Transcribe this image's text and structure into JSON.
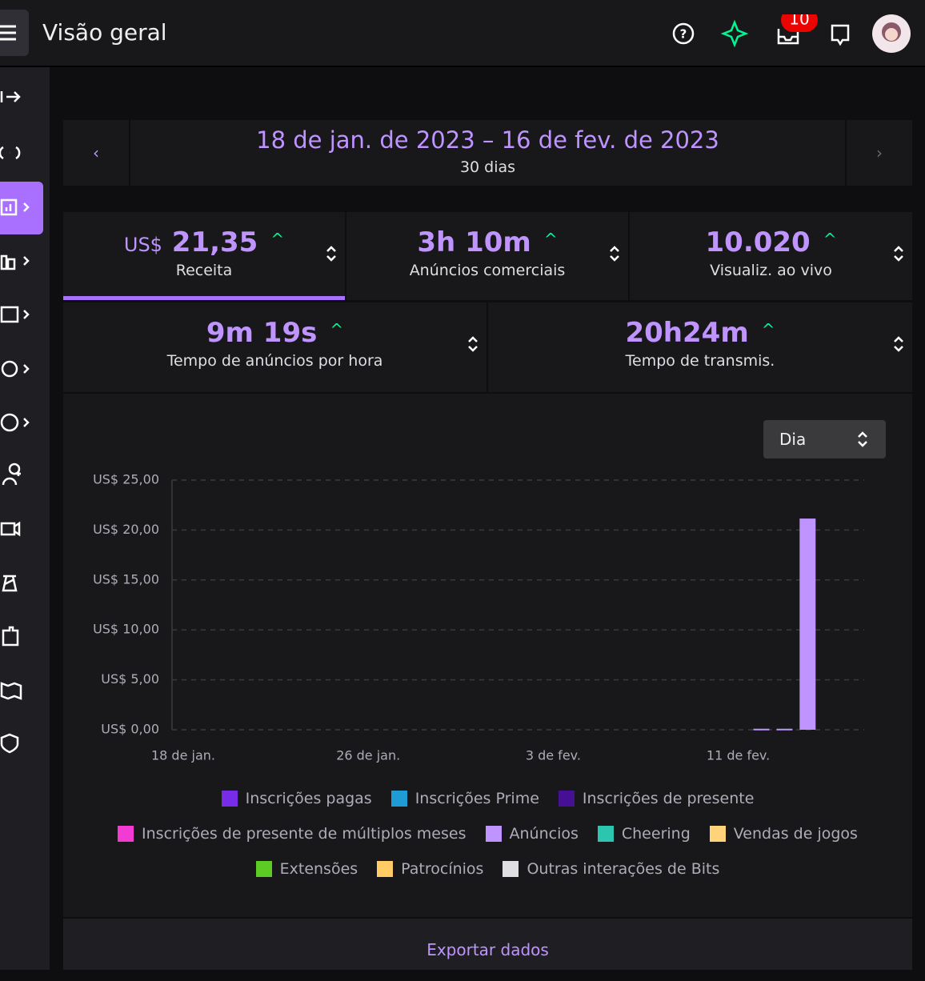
{
  "header": {
    "title": "Visão geral",
    "notification_count": "10"
  },
  "date_range": {
    "range": "18 de jan. de 2023 – 16 de fev. de 2023",
    "length": "30 dias"
  },
  "stats": [
    {
      "prefix": "US$",
      "value": "21,35",
      "label": "Receita"
    },
    {
      "value": "3h 10m",
      "label": "Anúncios comerciais"
    },
    {
      "value": "10.020",
      "label": "Visualiz. ao vivo"
    },
    {
      "value": "9m 19s",
      "label": "Tempo de anúncios por hora"
    },
    {
      "value": "20h24m",
      "label": "Tempo de transmis."
    }
  ],
  "interval_select": "Dia",
  "chart_data": {
    "type": "bar",
    "stacked": true,
    "grid": true,
    "categories": [
      "18 de jan.",
      null,
      null,
      null,
      null,
      null,
      null,
      null,
      "26 de jan.",
      null,
      null,
      null,
      null,
      null,
      null,
      null,
      "3 de fev.",
      null,
      null,
      null,
      null,
      null,
      null,
      null,
      "11 de fev.",
      null,
      null,
      null,
      null,
      null
    ],
    "ylim": [
      0,
      25
    ],
    "yticks": [
      {
        "value": 0,
        "label": "US$ 0,00"
      },
      {
        "value": 5,
        "label": "US$ 5,00"
      },
      {
        "value": 10,
        "label": "US$ 10,00"
      },
      {
        "value": 15,
        "label": "US$ 15,00"
      },
      {
        "value": 20,
        "label": "US$ 20,00"
      },
      {
        "value": 25,
        "label": "US$ 25,00"
      }
    ],
    "series": [
      {
        "name": "Inscrições pagas",
        "color": "#772ce8",
        "values": [
          0,
          0,
          0,
          0,
          0,
          0,
          0,
          0,
          0,
          0,
          0,
          0,
          0,
          0,
          0,
          0,
          0,
          0,
          0,
          0,
          0,
          0,
          0,
          0,
          0,
          0,
          0,
          0,
          0,
          0
        ]
      },
      {
        "name": "Inscrições Prime",
        "color": "#1f9bd6",
        "values": [
          0,
          0,
          0,
          0,
          0,
          0,
          0,
          0,
          0,
          0,
          0,
          0,
          0,
          0,
          0,
          0,
          0,
          0,
          0,
          0,
          0,
          0,
          0,
          0,
          0,
          0,
          0,
          0,
          0,
          0
        ]
      },
      {
        "name": "Inscrições de presente",
        "color": "#451093",
        "values": [
          0,
          0,
          0,
          0,
          0,
          0,
          0,
          0,
          0,
          0,
          0,
          0,
          0,
          0,
          0,
          0,
          0,
          0,
          0,
          0,
          0,
          0,
          0,
          0,
          0,
          0,
          0,
          0,
          0,
          0
        ]
      },
      {
        "name": "Inscrições de presente de múltiplos meses",
        "color": "#f13bd3",
        "values": [
          0,
          0,
          0,
          0,
          0,
          0,
          0,
          0,
          0,
          0,
          0,
          0,
          0,
          0,
          0,
          0,
          0,
          0,
          0,
          0,
          0,
          0,
          0,
          0,
          0,
          0,
          0,
          0,
          0,
          0
        ]
      },
      {
        "name": "Anúncios",
        "color": "#bf94ff",
        "values": [
          0,
          0,
          0,
          0,
          0,
          0,
          0,
          0,
          0,
          0,
          0,
          0,
          0,
          0,
          0,
          0,
          0,
          0,
          0,
          0,
          0,
          0,
          0,
          0,
          0,
          0.1,
          0.1,
          21.15,
          0,
          0
        ]
      },
      {
        "name": "Cheering",
        "color": "#2cc5b0",
        "values": [
          0,
          0,
          0,
          0,
          0,
          0,
          0,
          0,
          0,
          0,
          0,
          0,
          0,
          0,
          0,
          0,
          0,
          0,
          0,
          0,
          0,
          0,
          0,
          0,
          0,
          0,
          0,
          0,
          0,
          0
        ]
      },
      {
        "name": "Vendas de jogos",
        "color": "#ffd37a",
        "values": [
          0,
          0,
          0,
          0,
          0,
          0,
          0,
          0,
          0,
          0,
          0,
          0,
          0,
          0,
          0,
          0,
          0,
          0,
          0,
          0,
          0,
          0,
          0,
          0,
          0,
          0,
          0,
          0,
          0,
          0
        ]
      },
      {
        "name": "Extensões",
        "color": "#5ccc25",
        "values": [
          0,
          0,
          0,
          0,
          0,
          0,
          0,
          0,
          0,
          0,
          0,
          0,
          0,
          0,
          0,
          0,
          0,
          0,
          0,
          0,
          0,
          0,
          0,
          0,
          0,
          0,
          0,
          0,
          0,
          0
        ]
      },
      {
        "name": "Patrocínios",
        "color": "#ffcc66",
        "values": [
          0,
          0,
          0,
          0,
          0,
          0,
          0,
          0,
          0,
          0,
          0,
          0,
          0,
          0,
          0,
          0,
          0,
          0,
          0,
          0,
          0,
          0,
          0,
          0,
          0,
          0,
          0,
          0,
          0,
          0
        ]
      },
      {
        "name": "Outras interações de Bits",
        "color": "#dedee3",
        "values": [
          0,
          0,
          0,
          0,
          0,
          0,
          0,
          0,
          0,
          0,
          0,
          0,
          0,
          0,
          0,
          0,
          0,
          0,
          0,
          0,
          0,
          0,
          0,
          0,
          0,
          0,
          0,
          0,
          0,
          0
        ]
      }
    ]
  },
  "export": "Exportar dados"
}
